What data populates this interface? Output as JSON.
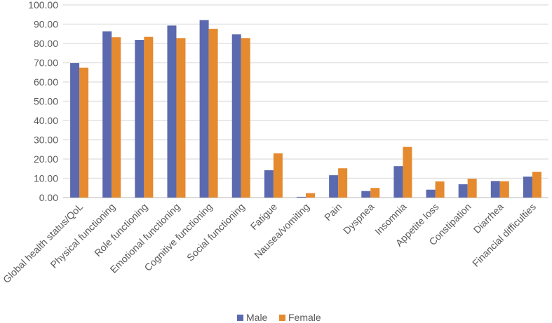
{
  "chart_data": {
    "type": "bar",
    "title": "",
    "xlabel": "",
    "ylabel": "",
    "ylim": [
      0,
      100
    ],
    "yticks": [
      "0.00",
      "10.00",
      "20.00",
      "30.00",
      "40.00",
      "50.00",
      "60.00",
      "70.00",
      "80.00",
      "90.00",
      "100.00"
    ],
    "grid": true,
    "legend_position": "bottom",
    "categories": [
      "Global health status/QoL",
      "Physical functioning",
      "Role functioning",
      "Emotional functioning",
      "Cognitive functioning",
      "Social functioning",
      "Fatigue",
      "Nausea/vomiting",
      "Pain",
      "Dyspnea",
      "Insomnia",
      "Appetite loss",
      "Constipation",
      "Diarrhea",
      "Financial difficulties"
    ],
    "series": [
      {
        "name": "Male",
        "color": "#5B69AF",
        "values": [
          69.8,
          86.3,
          81.8,
          89.3,
          92.1,
          84.7,
          14.2,
          0.4,
          11.6,
          3.4,
          16.3,
          4.1,
          6.9,
          8.6,
          10.9
        ]
      },
      {
        "name": "Female",
        "color": "#E58A2F",
        "values": [
          67.4,
          83.2,
          83.4,
          82.8,
          87.6,
          82.8,
          23.0,
          2.3,
          15.2,
          5.0,
          26.3,
          8.4,
          9.8,
          8.5,
          13.4
        ]
      }
    ]
  }
}
